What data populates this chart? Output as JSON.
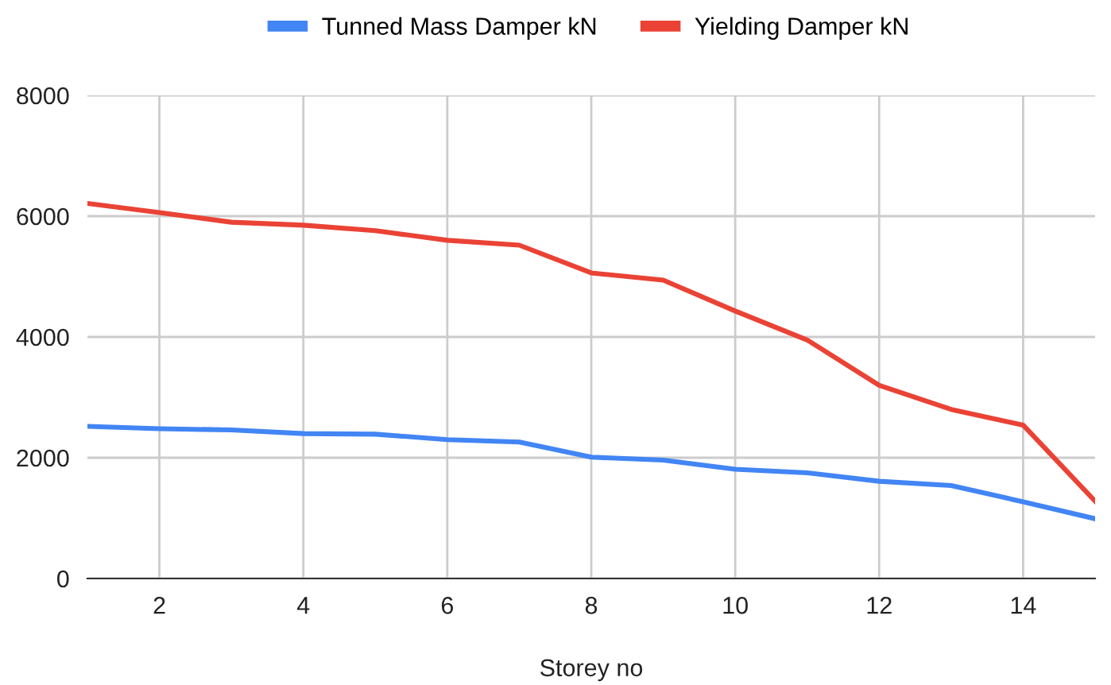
{
  "chart_data": {
    "type": "line",
    "xlabel": "Storey no",
    "x": [
      1,
      2,
      3,
      4,
      5,
      6,
      7,
      8,
      9,
      10,
      11,
      12,
      13,
      14,
      15
    ],
    "series": [
      {
        "name": "Tunned Mass Damper kN",
        "color": "#4285f4",
        "values": [
          2520,
          2480,
          2460,
          2400,
          2390,
          2300,
          2260,
          2010,
          1960,
          1810,
          1750,
          1610,
          1540,
          1270,
          990
        ]
      },
      {
        "name": "Yielding Damper kN",
        "color": "#ea4335",
        "values": [
          6210,
          6060,
          5900,
          5850,
          5760,
          5600,
          5520,
          5060,
          4940,
          4430,
          3950,
          3200,
          2800,
          2540,
          1280
        ]
      }
    ],
    "xlim": [
      1,
      15
    ],
    "xticks": [
      2,
      4,
      6,
      8,
      10,
      12,
      14
    ],
    "ylim": [
      0,
      8000
    ],
    "yticks": [
      0,
      2000,
      4000,
      6000,
      8000
    ],
    "grid": true,
    "legend": "top",
    "marker": "none",
    "line_style": "solid"
  }
}
